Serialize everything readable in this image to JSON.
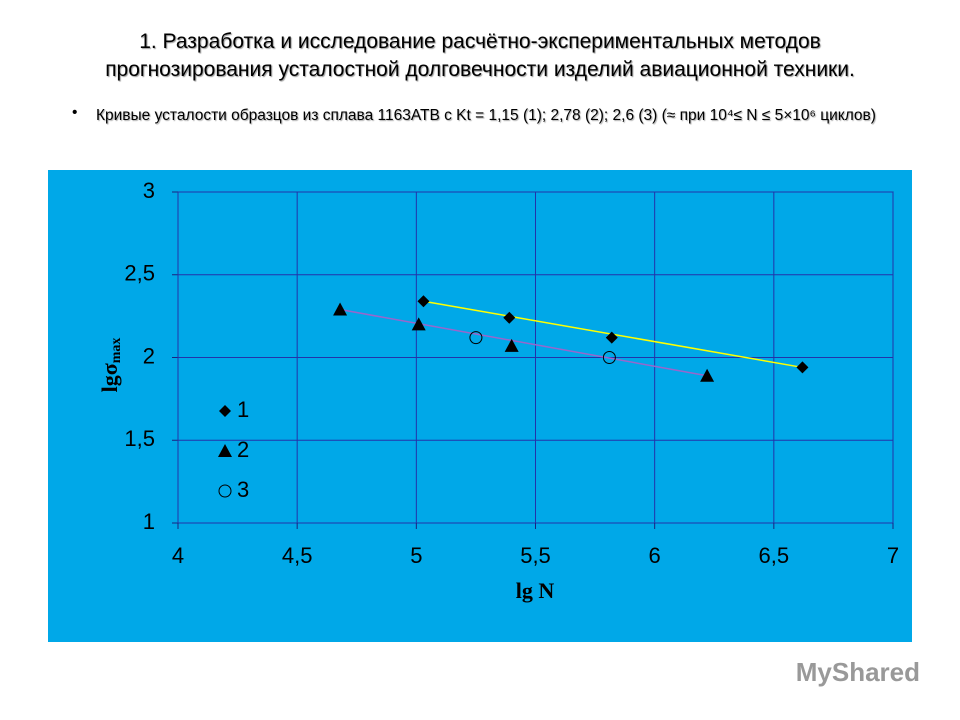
{
  "title": [
    "1. Разработка и исследование расчётно-экспериментальных методов",
    "прогнозирования усталостной долговечности изделий авиационной техники."
  ],
  "bullet": "Кривые усталости образцов из сплава 1163АТВ с Kt = 1,15 (1); 2,78 (2); 2,6 (3)  (≈ при 10⁴≤ N ≤ 5×10⁶ циклов)",
  "watermark": "MyShared",
  "chart_data": {
    "type": "scatter",
    "xlabel": "lg N",
    "ylabel": "lgσ",
    "ylabel_sub": "max",
    "xlim": [
      4,
      7
    ],
    "ylim": [
      1,
      3
    ],
    "xticks": [
      4,
      {
        "value": 4.5,
        "label": "4,5"
      },
      5,
      {
        "value": 5.5,
        "label": "5,5"
      },
      6,
      {
        "value": 6.5,
        "label": "6,5"
      },
      7
    ],
    "yticks": [
      1,
      {
        "value": 1.5,
        "label": "1,5"
      },
      2,
      {
        "value": 2.5,
        "label": "2,5"
      },
      3
    ],
    "grid": true,
    "legend": "lower-left",
    "series": [
      {
        "name": "1",
        "color": "#000000",
        "marker": "diamond",
        "trend_color": "#ffff00",
        "x": [
          5.03,
          5.39,
          5.82,
          6.62
        ],
        "y": [
          2.34,
          2.24,
          2.12,
          1.94
        ]
      },
      {
        "name": "2",
        "color": "#000000",
        "marker": "triangle",
        "trend_color": "#9966cc",
        "x": [
          4.68,
          5.01,
          5.4,
          6.22
        ],
        "y": [
          2.29,
          2.2,
          2.07,
          1.89
        ]
      },
      {
        "name": "3",
        "color": "#000000",
        "marker": "circle",
        "x": [
          5.25,
          5.81
        ],
        "y": [
          2.12,
          2.0
        ]
      }
    ]
  }
}
